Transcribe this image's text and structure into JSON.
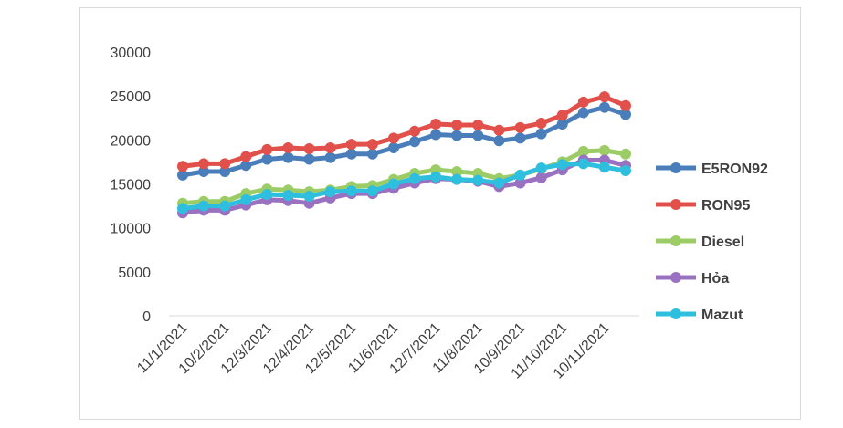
{
  "chart_data": {
    "type": "line",
    "title": "",
    "xlabel": "",
    "ylabel": "",
    "ylim": [
      0,
      30000
    ],
    "yticks": [
      0,
      5000,
      10000,
      15000,
      20000,
      25000,
      30000
    ],
    "ytick_labels": [
      "0",
      "5000",
      "10000",
      "15000",
      "20000",
      "25000",
      "30000"
    ],
    "tick_labels": [
      "11/1/2021",
      "10/2/2021",
      "12/3/2021",
      "12/4/2021",
      "12/5/2021",
      "11/6/2021",
      "12/7/2021",
      "11/8/2021",
      "10/9/2021",
      "11/10/2021",
      "10/11/2021"
    ],
    "grid": false,
    "legend_position": "right",
    "series": [
      {
        "name": "E5RON92",
        "color": "#4a7ebb",
        "values": [
          16000,
          16400,
          16400,
          17100,
          17800,
          18000,
          17800,
          18000,
          18400,
          18400,
          19100,
          19800,
          20600,
          20500,
          20500,
          19900,
          20200,
          20700,
          21800,
          23100,
          23700,
          22900
        ]
      },
      {
        "name": "RON95",
        "color": "#e1504a",
        "values": [
          17000,
          17300,
          17300,
          18100,
          18900,
          19100,
          19000,
          19100,
          19500,
          19500,
          20200,
          21000,
          21800,
          21700,
          21700,
          21100,
          21400,
          21900,
          22800,
          24300,
          24900,
          23900
        ]
      },
      {
        "name": "Diesel",
        "color": "#9ccc65",
        "values": [
          12800,
          13000,
          13000,
          13900,
          14400,
          14300,
          14100,
          14300,
          14700,
          14800,
          15500,
          16200,
          16600,
          16400,
          16200,
          15600,
          16000,
          16700,
          17500,
          18700,
          18800,
          18400
        ]
      },
      {
        "name": "Hỏa",
        "color": "#9a70c0",
        "values": [
          11700,
          12000,
          12000,
          12600,
          13200,
          13100,
          12800,
          13400,
          13900,
          13900,
          14500,
          15100,
          15600,
          15500,
          15300,
          14700,
          15100,
          15700,
          16600,
          17700,
          17700,
          17100
        ]
      },
      {
        "name": "Mazut",
        "color": "#2ebfde",
        "values": [
          12200,
          12500,
          12500,
          13200,
          13800,
          13700,
          13600,
          14100,
          14200,
          14200,
          15000,
          15600,
          15800,
          15500,
          15400,
          15100,
          16000,
          16800,
          17200,
          17300,
          16900,
          16500
        ]
      }
    ]
  }
}
